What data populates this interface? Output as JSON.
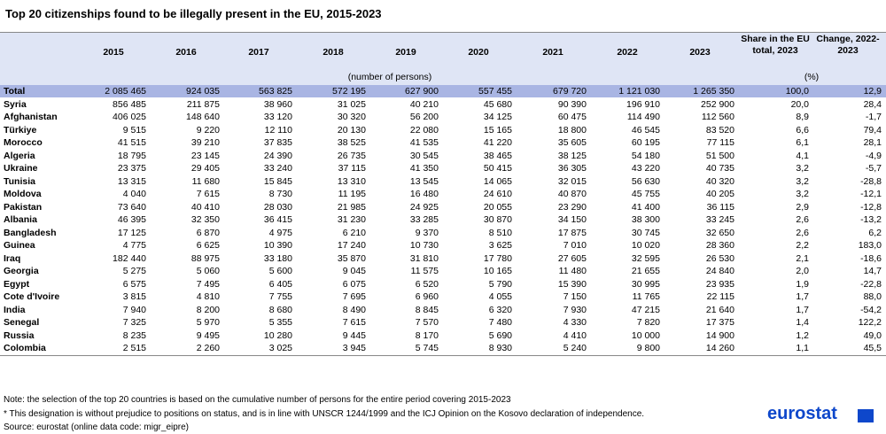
{
  "title": "Top 20 citizenships found to be illegally present in the EU, 2015-2023",
  "table": {
    "columns": [
      "2015",
      "2016",
      "2017",
      "2018",
      "2019",
      "2020",
      "2021",
      "2022",
      "2023",
      "Share in the EU total, 2023",
      "Change, 2022-2023"
    ],
    "units": [
      "(number of persons)",
      "(%)"
    ],
    "rows": [
      [
        "Total",
        "2 085 465",
        "924 035",
        "563 825",
        "572 195",
        "627 900",
        "557 455",
        "679 720",
        "1 121 030",
        "1 265 350",
        "100,0",
        "12,9"
      ],
      [
        "Syria",
        "856 485",
        "211 875",
        "38 960",
        "31 025",
        "40 210",
        "45 680",
        "90 390",
        "196 910",
        "252 900",
        "20,0",
        "28,4"
      ],
      [
        "Afghanistan",
        "406 025",
        "148 640",
        "33 120",
        "30 320",
        "56 200",
        "34 125",
        "60 475",
        "114 490",
        "112 560",
        "8,9",
        "-1,7"
      ],
      [
        "Türkiye",
        "9 515",
        "9 220",
        "12 110",
        "20 130",
        "22 080",
        "15 165",
        "18 800",
        "46 545",
        "83 520",
        "6,6",
        "79,4"
      ],
      [
        "Morocco",
        "41 515",
        "39 210",
        "37 835",
        "38 525",
        "41 535",
        "41 220",
        "35 605",
        "60 195",
        "77 115",
        "6,1",
        "28,1"
      ],
      [
        "Algeria",
        "18 795",
        "23 145",
        "24 390",
        "26 735",
        "30 545",
        "38 465",
        "38 125",
        "54 180",
        "51 500",
        "4,1",
        "-4,9"
      ],
      [
        "Ukraine",
        "23 375",
        "29 405",
        "33 240",
        "37 115",
        "41 350",
        "50 415",
        "36 305",
        "43 220",
        "40 735",
        "3,2",
        "-5,7"
      ],
      [
        "Tunisia",
        "13 315",
        "11 680",
        "15 845",
        "13 310",
        "13 545",
        "14 065",
        "32 015",
        "56 630",
        "40 320",
        "3,2",
        "-28,8"
      ],
      [
        "Moldova",
        "4 040",
        "7 615",
        "8 730",
        "11 195",
        "16 480",
        "24 610",
        "40 870",
        "45 755",
        "40 205",
        "3,2",
        "-12,1"
      ],
      [
        "Pakistan",
        "73 640",
        "40 410",
        "28 030",
        "21 985",
        "24 925",
        "20 055",
        "23 290",
        "41 400",
        "36 115",
        "2,9",
        "-12,8"
      ],
      [
        "Albania",
        "46 395",
        "32 350",
        "36 415",
        "31 230",
        "33 285",
        "30 870",
        "34 150",
        "38 300",
        "33 245",
        "2,6",
        "-13,2"
      ],
      [
        "Bangladesh",
        "17 125",
        "6 870",
        "4 975",
        "6 210",
        "9 370",
        "8 510",
        "17 875",
        "30 745",
        "32 650",
        "2,6",
        "6,2"
      ],
      [
        "Guinea",
        "4 775",
        "6 625",
        "10 390",
        "17 240",
        "10 730",
        "3 625",
        "7 010",
        "10 020",
        "28 360",
        "2,2",
        "183,0"
      ],
      [
        "Iraq",
        "182 440",
        "88 975",
        "33 180",
        "35 870",
        "31 810",
        "17 780",
        "27 605",
        "32 595",
        "26 530",
        "2,1",
        "-18,6"
      ],
      [
        "Georgia",
        "5 275",
        "5 060",
        "5 600",
        "9 045",
        "11 575",
        "10 165",
        "11 480",
        "21 655",
        "24 840",
        "2,0",
        "14,7"
      ],
      [
        "Egypt",
        "6 575",
        "7 495",
        "6 405",
        "6 075",
        "6 520",
        "5 790",
        "15 390",
        "30 995",
        "23 935",
        "1,9",
        "-22,8"
      ],
      [
        "Cote d'Ivoire",
        "3 815",
        "4 810",
        "7 755",
        "7 695",
        "6 960",
        "4 055",
        "7 150",
        "11 765",
        "22 115",
        "1,7",
        "88,0"
      ],
      [
        "India",
        "7 940",
        "8 200",
        "8 680",
        "8 490",
        "8 845",
        "6 320",
        "7 930",
        "47 215",
        "21 640",
        "1,7",
        "-54,2"
      ],
      [
        "Senegal",
        "7 325",
        "5 970",
        "5 355",
        "7 615",
        "7 570",
        "7 480",
        "4 330",
        "7 820",
        "17 375",
        "1,4",
        "122,2"
      ],
      [
        "Russia",
        "8 235",
        "9 495",
        "10 280",
        "9 445",
        "8 170",
        "5 690",
        "4 410",
        "10 000",
        "14 900",
        "1,2",
        "49,0"
      ],
      [
        "Colombia",
        "2 515",
        "2 260",
        "3 025",
        "3 945",
        "5 745",
        "8 930",
        "5 240",
        "9 800",
        "14 260",
        "1,1",
        "45,5"
      ]
    ]
  },
  "notes": [
    "Note: the selection of the top 20 countries is based on the cumulative number of persons for the entire period covering 2015-2023",
    "* This designation is without prejudice to positions on status, and is in line with UNSCR 1244/1999 and the ICJ Opinion on the Kosovo declaration of independence.",
    "Source: eurostat (online data code: migr_eipre)"
  ],
  "logo": "eurostat"
}
